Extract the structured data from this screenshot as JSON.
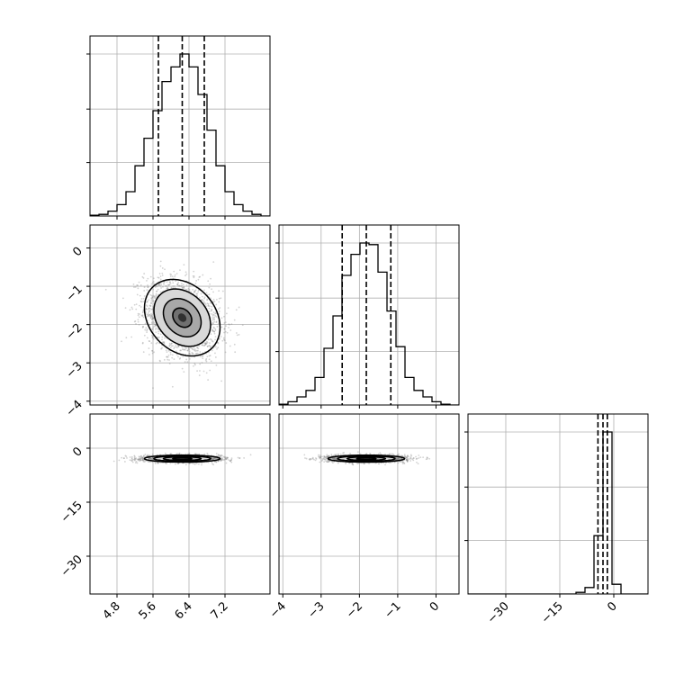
{
  "chart_data": {
    "type": "corner",
    "grid": true,
    "colors": {
      "hist": "#000000",
      "points": "#808080",
      "grid": "#b0b0b0",
      "frame": "#000000"
    },
    "parameters": [
      {
        "range": [
          4.2,
          8.2
        ],
        "ticks": [
          4.8,
          5.6,
          6.4,
          7.2
        ],
        "tick_labels": [
          "4.8",
          "5.6",
          "6.4",
          "7.2"
        ],
        "quantiles": [
          5.72,
          6.25,
          6.74
        ]
      },
      {
        "range": [
          -4.1,
          0.6
        ],
        "ticks": [
          -4,
          -3,
          -2,
          -1,
          0
        ],
        "tick_labels": [
          "−4",
          "−3",
          "−2",
          "−1",
          "0"
        ],
        "quantiles": [
          -2.45,
          -1.82,
          -1.18
        ]
      },
      {
        "range": [
          -40.5,
          9.5
        ],
        "ticks": [
          -30,
          -15,
          0
        ],
        "tick_labels": [
          "−30",
          "−15",
          "0"
        ],
        "quantiles": [
          -4.4,
          -3.0,
          -1.8
        ]
      }
    ],
    "histograms": [
      {
        "bin_edges": [
          4.2,
          4.4,
          4.6,
          4.8,
          5.0,
          5.2,
          5.4,
          5.6,
          5.8,
          6.0,
          6.2,
          6.4,
          6.6,
          6.8,
          7.0,
          7.2,
          7.4,
          7.6,
          7.8,
          8.0,
          8.2
        ],
        "counts": [
          0.005,
          0.01,
          0.03,
          0.07,
          0.15,
          0.31,
          0.48,
          0.65,
          0.83,
          0.92,
          1.0,
          0.92,
          0.75,
          0.53,
          0.31,
          0.15,
          0.07,
          0.03,
          0.01,
          0
        ]
      },
      {
        "bin_edges": [
          -4.1,
          -3.865,
          -3.63,
          -3.395,
          -3.16,
          -2.925,
          -2.69,
          -2.455,
          -2.22,
          -1.985,
          -1.75,
          -1.515,
          -1.28,
          -1.045,
          -0.81,
          -0.575,
          -0.34,
          -0.105,
          0.13,
          0.365,
          0.6
        ],
        "counts": [
          0.005,
          0.02,
          0.05,
          0.09,
          0.17,
          0.35,
          0.55,
          0.8,
          0.93,
          1.0,
          0.99,
          0.82,
          0.58,
          0.36,
          0.17,
          0.09,
          0.05,
          0.02,
          0.005,
          0
        ]
      },
      {
        "bin_edges": [
          -40.5,
          -38,
          -35.5,
          -33,
          -30.5,
          -28,
          -25.5,
          -23,
          -20.5,
          -18,
          -15.5,
          -13,
          -10.5,
          -8,
          -5.5,
          -3,
          -0.5,
          2,
          4.5,
          7,
          9.5
        ],
        "counts": [
          0,
          0,
          0,
          0,
          0,
          0,
          0,
          0,
          0,
          0,
          0,
          0,
          0.01,
          0.04,
          0.36,
          1.0,
          0.06,
          0,
          0,
          0
        ]
      }
    ],
    "joint_2d": [
      {
        "x_param": 0,
        "y_param": 1,
        "mean": [
          6.25,
          -1.82
        ],
        "std": [
          0.42,
          0.5
        ],
        "corr": -0.25
      },
      {
        "x_param": 0,
        "y_param": 2,
        "mean": [
          6.25,
          -2.9
        ],
        "std": [
          0.42,
          1.4
        ],
        "corr": 0.0
      },
      {
        "x_param": 1,
        "y_param": 2,
        "mean": [
          -1.82,
          -2.9
        ],
        "std": [
          0.5,
          1.4
        ],
        "corr": 0.0
      }
    ],
    "contour_levels_sigma": [
      0.5,
      1.0,
      1.5,
      2.0
    ]
  }
}
